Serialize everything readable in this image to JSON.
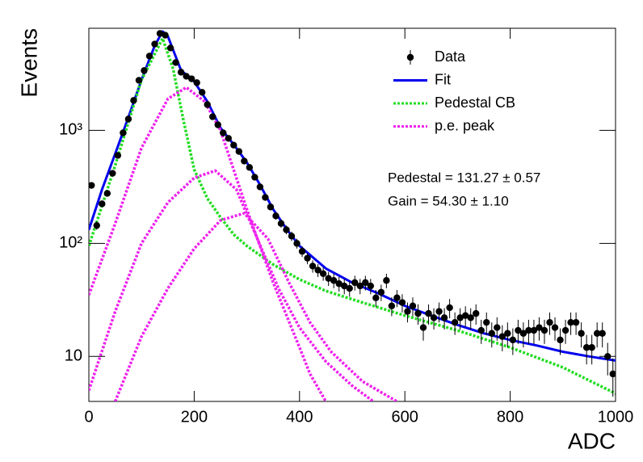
{
  "chart_data": {
    "type": "line",
    "xlabel": "ADC",
    "ylabel": "Events",
    "xlim": [
      0,
      1000
    ],
    "ylim": [
      4,
      8000
    ],
    "log_y": true,
    "xticks": [
      0,
      200,
      400,
      600,
      800,
      1000
    ],
    "yticks": [
      10,
      {
        "value": 100,
        "label": "10²"
      },
      {
        "value": 1000,
        "label": "10³"
      }
    ],
    "legend": "upper right",
    "annotations": [
      "Pedestal = 131.27 ± 0.57",
      "Gain = 54.30 ± 1.10"
    ],
    "series": [
      {
        "name": "Data",
        "type": "errorbar",
        "color": "#000000",
        "x": [
          5,
          15,
          25,
          35,
          45,
          55,
          65,
          75,
          85,
          95,
          105,
          115,
          125,
          135,
          145,
          155,
          165,
          175,
          185,
          195,
          205,
          215,
          225,
          235,
          245,
          255,
          265,
          275,
          285,
          295,
          305,
          315,
          325,
          335,
          345,
          355,
          365,
          375,
          385,
          395,
          405,
          415,
          425,
          435,
          445,
          455,
          465,
          475,
          485,
          495,
          505,
          515,
          525,
          535,
          545,
          555,
          565,
          575,
          585,
          595,
          605,
          615,
          625,
          635,
          645,
          655,
          665,
          675,
          685,
          695,
          705,
          715,
          725,
          735,
          745,
          755,
          765,
          775,
          785,
          795,
          805,
          815,
          825,
          835,
          845,
          855,
          865,
          875,
          885,
          895,
          905,
          915,
          925,
          935,
          945,
          955,
          965,
          975,
          985,
          995
        ],
        "values": [
          326,
          144,
          224,
          277,
          417,
          600,
          950,
          1260,
          1840,
          2770,
          3380,
          4540,
          5800,
          7200,
          6950,
          5350,
          3980,
          3270,
          3010,
          2860,
          2640,
          2170,
          1690,
          1320,
          1120,
          950,
          850,
          740,
          650,
          535,
          470,
          385,
          316,
          255,
          210,
          175,
          150,
          132,
          116,
          100,
          85,
          74,
          63,
          58,
          54,
          49,
          47,
          44,
          42,
          40,
          45,
          42,
          45,
          42,
          33,
          37,
          47,
          28,
          33,
          30,
          25,
          28,
          24,
          18,
          24,
          22,
          25,
          22,
          27,
          20,
          22,
          23,
          22,
          24,
          17,
          20,
          16,
          18,
          15,
          16,
          14,
          17,
          16,
          17,
          17,
          18,
          17,
          20,
          18,
          14,
          17,
          20,
          20,
          16,
          12,
          12,
          16,
          16,
          10,
          7
        ],
        "errors": [
          18,
          12,
          15,
          17,
          20,
          24,
          31,
          35,
          43,
          53,
          58,
          67,
          76,
          85,
          83,
          73,
          63,
          57,
          55,
          53,
          51,
          47,
          41,
          36,
          33,
          31,
          29,
          27,
          25,
          23,
          22,
          20,
          18,
          16,
          14.5,
          13,
          12,
          11.5,
          11,
          10,
          9.2,
          8.6,
          7.9,
          7.6,
          7.3,
          7,
          6.9,
          6.6,
          6.5,
          6.3,
          6.7,
          6.5,
          6.7,
          6.5,
          5.7,
          6.1,
          6.9,
          5.3,
          5.7,
          5.5,
          5,
          5.3,
          4.9,
          4.2,
          4.9,
          4.7,
          5,
          4.7,
          5.2,
          4.5,
          4.7,
          4.8,
          4.7,
          4.9,
          4.1,
          4.5,
          4,
          4.2,
          3.9,
          4,
          3.7,
          4.1,
          4,
          4.1,
          4.1,
          4.2,
          4.1,
          4.5,
          4.2,
          3.7,
          4.1,
          4.5,
          4.5,
          4,
          3.5,
          3.5,
          4,
          4,
          3.2,
          2.6
        ]
      },
      {
        "name": "Fit",
        "type": "line",
        "color": "#0000ee",
        "dash": "solid",
        "curves": [
          {
            "x": [
              0,
              25,
              50,
              75,
              100,
              125,
              140,
              150,
              175,
              200,
              225,
              250,
              275,
              300,
              325,
              350,
              375,
              400,
              450,
              500,
              550,
              600,
              650,
              700,
              750,
              800,
              850,
              900,
              950,
              1000
            ],
            "values": [
              132,
              300,
              620,
              1300,
              2800,
              5600,
              7500,
              6800,
              3400,
              2700,
              1800,
              1050,
              750,
              520,
              330,
              200,
              135,
              95,
              60,
              45,
              36,
              28,
              23,
              19,
              16,
              14,
              12.5,
              11,
              10,
              9.2
            ]
          }
        ]
      },
      {
        "name": "Pedestal CB",
        "type": "line",
        "color": "#22dd22",
        "dash": "dotted",
        "curves": [
          {
            "x": [
              0,
              50,
              100,
              140,
              160,
              180,
              200,
              225,
              250,
              275,
              300,
              350,
              400,
              450,
              500,
              600,
              700,
              800,
              900,
              1000
            ],
            "values": [
              95,
              490,
              2800,
              6500,
              3500,
              1200,
              450,
              250,
              170,
              120,
              95,
              65,
              48,
              38,
              32,
              23,
              17,
              12,
              8,
              4.7
            ]
          }
        ]
      },
      {
        "name": "p.e. peak",
        "type": "line",
        "color": "#ee22ee",
        "dash": "dotted",
        "curves": [
          {
            "x": [
              0,
              50,
              100,
              150,
              185,
              220,
              250,
              300,
              350,
              400,
              420,
              450
            ],
            "values": [
              35,
              150,
              700,
              1900,
              2400,
              1800,
              1000,
              200,
              45,
              12,
              7,
              4
            ]
          },
          {
            "x": [
              0,
              50,
              100,
              150,
              200,
              240,
              280,
              320,
              360,
              400,
              450,
              500,
              540
            ],
            "values": [
              5,
              25,
              100,
              230,
              380,
              440,
              300,
              110,
              40,
              18,
              9,
              5.5,
              4
            ]
          },
          {
            "x": [
              50,
              100,
              150,
              200,
              250,
              295,
              340,
              380,
              420,
              460,
              520,
              585
            ],
            "values": [
              4,
              15,
              40,
              90,
              160,
              185,
              110,
              45,
              20,
              11,
              6,
              4
            ]
          }
        ]
      }
    ]
  }
}
